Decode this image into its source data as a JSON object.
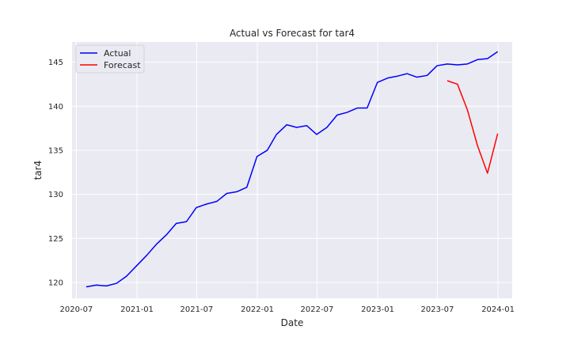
{
  "chart_data": {
    "type": "line",
    "title": "Actual vs Forecast for tar4",
    "xlabel": "Date",
    "ylabel": "tar4",
    "x_tick_labels": [
      "2020-07",
      "2021-01",
      "2021-07",
      "2022-01",
      "2022-07",
      "2023-01",
      "2023-07",
      "2024-01"
    ],
    "x_ticks": [
      "2020-07-01",
      "2021-01-01",
      "2021-07-01",
      "2022-01-01",
      "2022-07-01",
      "2023-01-01",
      "2023-07-01",
      "2024-01-01"
    ],
    "y_ticks": [
      120,
      125,
      130,
      135,
      140,
      145
    ],
    "xlim": [
      "2020-06-18",
      "2024-02-13"
    ],
    "ylim": [
      118.2,
      147.3
    ],
    "grid": true,
    "legend_position": "top-left",
    "series": [
      {
        "name": "Actual",
        "color": "#0000ff",
        "points": [
          [
            "2020-07-31",
            119.5
          ],
          [
            "2020-08-31",
            119.7
          ],
          [
            "2020-09-30",
            119.6
          ],
          [
            "2020-10-31",
            119.9
          ],
          [
            "2020-11-30",
            120.7
          ],
          [
            "2020-12-31",
            121.9
          ],
          [
            "2021-01-31",
            123.1
          ],
          [
            "2021-02-28",
            124.3
          ],
          [
            "2021-03-31",
            125.4
          ],
          [
            "2021-04-30",
            126.7
          ],
          [
            "2021-05-31",
            126.9
          ],
          [
            "2021-06-30",
            128.5
          ],
          [
            "2021-07-31",
            128.9
          ],
          [
            "2021-08-31",
            129.2
          ],
          [
            "2021-09-30",
            130.1
          ],
          [
            "2021-10-31",
            130.3
          ],
          [
            "2021-11-30",
            130.8
          ],
          [
            "2021-12-31",
            134.3
          ],
          [
            "2022-01-31",
            135.0
          ],
          [
            "2022-02-28",
            136.8
          ],
          [
            "2022-03-31",
            137.9
          ],
          [
            "2022-04-30",
            137.6
          ],
          [
            "2022-05-31",
            137.8
          ],
          [
            "2022-06-30",
            136.8
          ],
          [
            "2022-07-31",
            137.6
          ],
          [
            "2022-08-31",
            139.0
          ],
          [
            "2022-09-30",
            139.3
          ],
          [
            "2022-10-31",
            139.8
          ],
          [
            "2022-11-30",
            139.8
          ],
          [
            "2022-12-31",
            142.7
          ],
          [
            "2023-01-31",
            143.2
          ],
          [
            "2023-02-28",
            143.4
          ],
          [
            "2023-03-31",
            143.7
          ],
          [
            "2023-04-30",
            143.3
          ],
          [
            "2023-05-31",
            143.5
          ],
          [
            "2023-06-30",
            144.6
          ],
          [
            "2023-07-31",
            144.8
          ],
          [
            "2023-08-31",
            144.7
          ],
          [
            "2023-09-30",
            144.8
          ],
          [
            "2023-10-31",
            145.3
          ],
          [
            "2023-11-30",
            145.4
          ],
          [
            "2023-12-31",
            146.2
          ]
        ]
      },
      {
        "name": "Forecast",
        "color": "#ff0000",
        "points": [
          [
            "2023-07-31",
            142.9
          ],
          [
            "2023-08-31",
            142.5
          ],
          [
            "2023-09-30",
            139.6
          ],
          [
            "2023-10-31",
            135.5
          ],
          [
            "2023-11-30",
            132.4
          ],
          [
            "2023-12-31",
            136.9
          ]
        ]
      }
    ]
  }
}
